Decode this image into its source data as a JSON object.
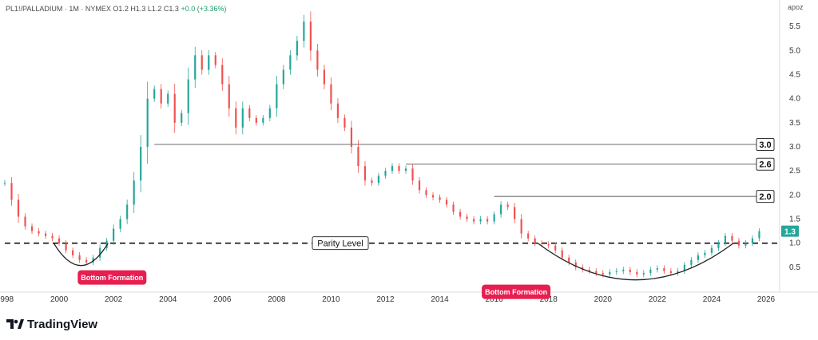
{
  "header": {
    "symbol": "PL1!/PALLADIUM · 1M · NYMEX",
    "ohlc": "O1.2  H1.3  L1.2  C1.3",
    "change": "+0.0 (+3.36%)"
  },
  "axis_label": "apoz",
  "brand": "TradingView",
  "colors": {
    "up": "#26a69a",
    "down": "#ef5350",
    "badge": "#e91e50",
    "price_tag": "#26a69a"
  },
  "chart_data": {
    "type": "candlestick",
    "x_ticks": [
      "1998",
      "2000",
      "2002",
      "2004",
      "2006",
      "2008",
      "2010",
      "2012",
      "2014",
      "2016",
      "2018",
      "2020",
      "2022",
      "2024",
      "2026"
    ],
    "y_ticks": [
      "0.5",
      "1.0",
      "1.5",
      "2.0",
      "2.5",
      "3.0",
      "3.5",
      "4.0",
      "4.5",
      "5.0",
      "5.5"
    ],
    "ylim": [
      0.05,
      5.75
    ],
    "xlim": [
      1998.0,
      2026.5
    ],
    "last_price": "1.3",
    "series": [
      {
        "values": [
          [
            1998.0,
            2.25
          ],
          [
            1998.25,
            1.9
          ],
          [
            1998.5,
            1.55
          ],
          [
            1998.75,
            1.35
          ],
          [
            1999.0,
            1.25
          ],
          [
            1999.25,
            1.2
          ],
          [
            1999.5,
            1.15
          ],
          [
            1999.75,
            1.1
          ],
          [
            2000.0,
            1.0
          ],
          [
            2000.25,
            0.85
          ],
          [
            2000.5,
            0.75
          ],
          [
            2000.75,
            0.65
          ],
          [
            2001.0,
            0.6
          ],
          [
            2001.25,
            0.7
          ],
          [
            2001.5,
            0.9
          ],
          [
            2001.75,
            1.05
          ],
          [
            2002.0,
            1.3
          ],
          [
            2002.25,
            1.5
          ],
          [
            2002.5,
            1.8
          ],
          [
            2002.75,
            2.3
          ],
          [
            2003.0,
            3.0
          ],
          [
            2003.25,
            4.0
          ],
          [
            2003.5,
            4.2
          ],
          [
            2003.75,
            3.9
          ],
          [
            2004.0,
            4.1
          ],
          [
            2004.25,
            3.5
          ],
          [
            2004.5,
            3.7
          ],
          [
            2004.75,
            4.4
          ],
          [
            2005.0,
            4.9
          ],
          [
            2005.25,
            4.6
          ],
          [
            2005.5,
            4.9
          ],
          [
            2005.75,
            4.7
          ],
          [
            2006.0,
            4.3
          ],
          [
            2006.25,
            3.8
          ],
          [
            2006.5,
            3.4
          ],
          [
            2006.75,
            3.8
          ],
          [
            2007.0,
            3.6
          ],
          [
            2007.25,
            3.5
          ],
          [
            2007.5,
            3.6
          ],
          [
            2007.75,
            3.8
          ],
          [
            2008.0,
            4.3
          ],
          [
            2008.25,
            4.6
          ],
          [
            2008.5,
            4.9
          ],
          [
            2008.75,
            5.2
          ],
          [
            2009.0,
            5.6
          ],
          [
            2009.25,
            5.0
          ],
          [
            2009.5,
            4.6
          ],
          [
            2009.75,
            4.3
          ],
          [
            2010.0,
            3.9
          ],
          [
            2010.25,
            3.6
          ],
          [
            2010.5,
            3.4
          ],
          [
            2010.75,
            3.0
          ],
          [
            2011.0,
            2.6
          ],
          [
            2011.25,
            2.3
          ],
          [
            2011.5,
            2.25
          ],
          [
            2011.75,
            2.4
          ],
          [
            2012.0,
            2.5
          ],
          [
            2012.25,
            2.6
          ],
          [
            2012.5,
            2.5
          ],
          [
            2012.75,
            2.55
          ],
          [
            2013.0,
            2.3
          ],
          [
            2013.25,
            2.1
          ],
          [
            2013.5,
            2.0
          ],
          [
            2013.75,
            1.95
          ],
          [
            2014.0,
            1.9
          ],
          [
            2014.25,
            1.8
          ],
          [
            2014.5,
            1.65
          ],
          [
            2014.75,
            1.55
          ],
          [
            2015.0,
            1.5
          ],
          [
            2015.25,
            1.45
          ],
          [
            2015.5,
            1.5
          ],
          [
            2015.75,
            1.45
          ],
          [
            2016.0,
            1.6
          ],
          [
            2016.25,
            1.8
          ],
          [
            2016.5,
            1.75
          ],
          [
            2016.75,
            1.5
          ],
          [
            2017.0,
            1.2
          ],
          [
            2017.25,
            1.1
          ],
          [
            2017.5,
            1.0
          ],
          [
            2017.75,
            0.98
          ],
          [
            2018.0,
            0.95
          ],
          [
            2018.25,
            0.85
          ],
          [
            2018.5,
            0.7
          ],
          [
            2018.75,
            0.6
          ],
          [
            2019.0,
            0.5
          ],
          [
            2019.25,
            0.45
          ],
          [
            2019.5,
            0.42
          ],
          [
            2019.75,
            0.38
          ],
          [
            2020.0,
            0.35
          ],
          [
            2020.25,
            0.4
          ],
          [
            2020.5,
            0.42
          ],
          [
            2020.75,
            0.45
          ],
          [
            2021.0,
            0.4
          ],
          [
            2021.25,
            0.35
          ],
          [
            2021.5,
            0.38
          ],
          [
            2021.75,
            0.45
          ],
          [
            2022.0,
            0.48
          ],
          [
            2022.25,
            0.42
          ],
          [
            2022.5,
            0.38
          ],
          [
            2022.75,
            0.42
          ],
          [
            2023.0,
            0.55
          ],
          [
            2023.25,
            0.65
          ],
          [
            2023.5,
            0.75
          ],
          [
            2023.75,
            0.8
          ],
          [
            2024.0,
            0.9
          ],
          [
            2024.25,
            1.0
          ],
          [
            2024.5,
            1.15
          ],
          [
            2024.75,
            1.05
          ],
          [
            2025.0,
            0.95
          ],
          [
            2025.25,
            1.0
          ],
          [
            2025.5,
            1.1
          ],
          [
            2025.75,
            1.25
          ]
        ]
      }
    ],
    "levels": [
      {
        "label": "3.0",
        "value": 3.05,
        "from_x": 2003.5
      },
      {
        "label": "2.6",
        "value": 2.64,
        "from_x": 2012.75
      },
      {
        "label": "2.0",
        "value": 1.97,
        "from_x": 2016.0
      }
    ],
    "parity": {
      "label": "Parity Level",
      "value": 1.0
    },
    "annotations": [
      {
        "label": "Bottom Formation",
        "x_range": [
          1999.8,
          2001.8
        ]
      },
      {
        "label": "Bottom Formation",
        "x_range": [
          2017.6,
          2024.8
        ]
      }
    ]
  }
}
